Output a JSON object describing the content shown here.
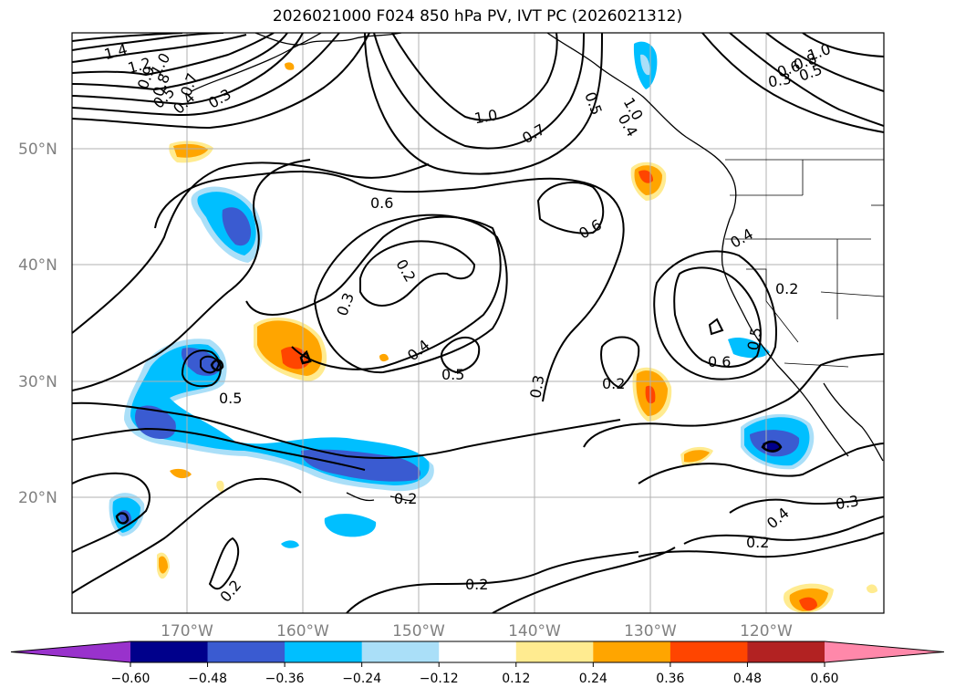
{
  "title": "2026021000 F024 850 hPa PV, IVT PC (2026021312)",
  "lat_labels": [
    "50°N",
    "40°N",
    "30°N",
    "20°N"
  ],
  "lon_labels": [
    "170°W",
    "160°W",
    "150°W",
    "140°W",
    "130°W",
    "120°W"
  ],
  "colorbar": {
    "colors": [
      "#9932cc",
      "#00008b",
      "#3a5bd1",
      "#00bfff",
      "#aadff8",
      "#ffffff",
      "#ffeb90",
      "#ffa500",
      "#ff4500",
      "#b22222",
      "#ff88aa"
    ],
    "tick_labels": [
      "−0.60",
      "−0.48",
      "−0.36",
      "−0.24",
      "−0.12",
      "0.12",
      "0.24",
      "0.36",
      "0.48",
      "0.60"
    ]
  },
  "contour_labels": [
    "1.4",
    "1.2",
    "1.0",
    "0.9",
    "0.8",
    "0.7",
    "0.5",
    "0.4",
    "0.3",
    "1.0",
    "0.7",
    "0.5",
    "1.0",
    "0.4",
    "1.0",
    "0.8",
    "0.6",
    "0.5",
    "0.3",
    "0.6",
    "0.6",
    "0.2",
    "0.3",
    "0.4",
    "0.5",
    "0.5",
    "0.3",
    "0.2",
    "0.4",
    "0.2",
    "0.6",
    "0.5",
    "0.2",
    "0.4",
    "0.3",
    "0.2",
    "0.2",
    "0.2"
  ]
}
